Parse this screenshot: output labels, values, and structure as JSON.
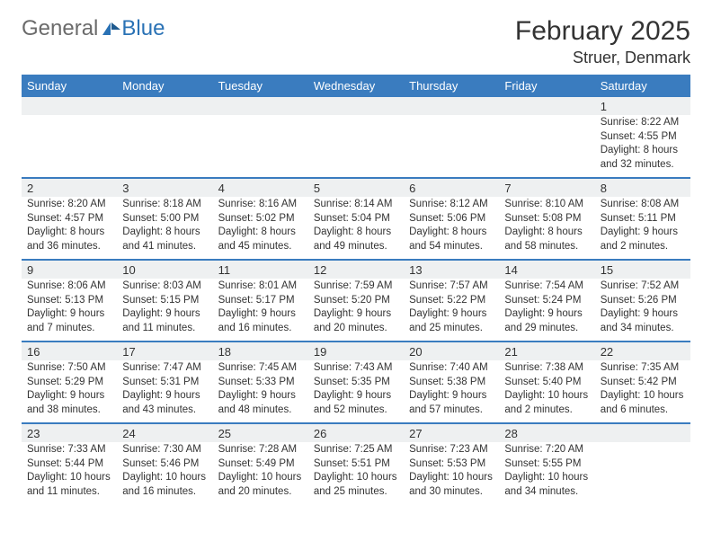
{
  "logo": {
    "general": "General",
    "blue": "Blue"
  },
  "title": "February 2025",
  "location": "Struer, Denmark",
  "headerColor": "#3a7cbf",
  "headerBg": "#eef0f1",
  "dayNames": [
    "Sunday",
    "Monday",
    "Tuesday",
    "Wednesday",
    "Thursday",
    "Friday",
    "Saturday"
  ],
  "weeks": [
    {
      "dates": [
        "",
        "",
        "",
        "",
        "",
        "",
        "1"
      ],
      "cells": [
        {},
        {},
        {},
        {},
        {},
        {},
        {
          "sunrise": "Sunrise: 8:22 AM",
          "sunset": "Sunset: 4:55 PM",
          "daylight": "Daylight: 8 hours and 32 minutes."
        }
      ]
    },
    {
      "dates": [
        "2",
        "3",
        "4",
        "5",
        "6",
        "7",
        "8"
      ],
      "cells": [
        {
          "sunrise": "Sunrise: 8:20 AM",
          "sunset": "Sunset: 4:57 PM",
          "daylight": "Daylight: 8 hours and 36 minutes."
        },
        {
          "sunrise": "Sunrise: 8:18 AM",
          "sunset": "Sunset: 5:00 PM",
          "daylight": "Daylight: 8 hours and 41 minutes."
        },
        {
          "sunrise": "Sunrise: 8:16 AM",
          "sunset": "Sunset: 5:02 PM",
          "daylight": "Daylight: 8 hours and 45 minutes."
        },
        {
          "sunrise": "Sunrise: 8:14 AM",
          "sunset": "Sunset: 5:04 PM",
          "daylight": "Daylight: 8 hours and 49 minutes."
        },
        {
          "sunrise": "Sunrise: 8:12 AM",
          "sunset": "Sunset: 5:06 PM",
          "daylight": "Daylight: 8 hours and 54 minutes."
        },
        {
          "sunrise": "Sunrise: 8:10 AM",
          "sunset": "Sunset: 5:08 PM",
          "daylight": "Daylight: 8 hours and 58 minutes."
        },
        {
          "sunrise": "Sunrise: 8:08 AM",
          "sunset": "Sunset: 5:11 PM",
          "daylight": "Daylight: 9 hours and 2 minutes."
        }
      ]
    },
    {
      "dates": [
        "9",
        "10",
        "11",
        "12",
        "13",
        "14",
        "15"
      ],
      "cells": [
        {
          "sunrise": "Sunrise: 8:06 AM",
          "sunset": "Sunset: 5:13 PM",
          "daylight": "Daylight: 9 hours and 7 minutes."
        },
        {
          "sunrise": "Sunrise: 8:03 AM",
          "sunset": "Sunset: 5:15 PM",
          "daylight": "Daylight: 9 hours and 11 minutes."
        },
        {
          "sunrise": "Sunrise: 8:01 AM",
          "sunset": "Sunset: 5:17 PM",
          "daylight": "Daylight: 9 hours and 16 minutes."
        },
        {
          "sunrise": "Sunrise: 7:59 AM",
          "sunset": "Sunset: 5:20 PM",
          "daylight": "Daylight: 9 hours and 20 minutes."
        },
        {
          "sunrise": "Sunrise: 7:57 AM",
          "sunset": "Sunset: 5:22 PM",
          "daylight": "Daylight: 9 hours and 25 minutes."
        },
        {
          "sunrise": "Sunrise: 7:54 AM",
          "sunset": "Sunset: 5:24 PM",
          "daylight": "Daylight: 9 hours and 29 minutes."
        },
        {
          "sunrise": "Sunrise: 7:52 AM",
          "sunset": "Sunset: 5:26 PM",
          "daylight": "Daylight: 9 hours and 34 minutes."
        }
      ]
    },
    {
      "dates": [
        "16",
        "17",
        "18",
        "19",
        "20",
        "21",
        "22"
      ],
      "cells": [
        {
          "sunrise": "Sunrise: 7:50 AM",
          "sunset": "Sunset: 5:29 PM",
          "daylight": "Daylight: 9 hours and 38 minutes."
        },
        {
          "sunrise": "Sunrise: 7:47 AM",
          "sunset": "Sunset: 5:31 PM",
          "daylight": "Daylight: 9 hours and 43 minutes."
        },
        {
          "sunrise": "Sunrise: 7:45 AM",
          "sunset": "Sunset: 5:33 PM",
          "daylight": "Daylight: 9 hours and 48 minutes."
        },
        {
          "sunrise": "Sunrise: 7:43 AM",
          "sunset": "Sunset: 5:35 PM",
          "daylight": "Daylight: 9 hours and 52 minutes."
        },
        {
          "sunrise": "Sunrise: 7:40 AM",
          "sunset": "Sunset: 5:38 PM",
          "daylight": "Daylight: 9 hours and 57 minutes."
        },
        {
          "sunrise": "Sunrise: 7:38 AM",
          "sunset": "Sunset: 5:40 PM",
          "daylight": "Daylight: 10 hours and 2 minutes."
        },
        {
          "sunrise": "Sunrise: 7:35 AM",
          "sunset": "Sunset: 5:42 PM",
          "daylight": "Daylight: 10 hours and 6 minutes."
        }
      ]
    },
    {
      "dates": [
        "23",
        "24",
        "25",
        "26",
        "27",
        "28",
        ""
      ],
      "cells": [
        {
          "sunrise": "Sunrise: 7:33 AM",
          "sunset": "Sunset: 5:44 PM",
          "daylight": "Daylight: 10 hours and 11 minutes."
        },
        {
          "sunrise": "Sunrise: 7:30 AM",
          "sunset": "Sunset: 5:46 PM",
          "daylight": "Daylight: 10 hours and 16 minutes."
        },
        {
          "sunrise": "Sunrise: 7:28 AM",
          "sunset": "Sunset: 5:49 PM",
          "daylight": "Daylight: 10 hours and 20 minutes."
        },
        {
          "sunrise": "Sunrise: 7:25 AM",
          "sunset": "Sunset: 5:51 PM",
          "daylight": "Daylight: 10 hours and 25 minutes."
        },
        {
          "sunrise": "Sunrise: 7:23 AM",
          "sunset": "Sunset: 5:53 PM",
          "daylight": "Daylight: 10 hours and 30 minutes."
        },
        {
          "sunrise": "Sunrise: 7:20 AM",
          "sunset": "Sunset: 5:55 PM",
          "daylight": "Daylight: 10 hours and 34 minutes."
        },
        {}
      ]
    }
  ]
}
